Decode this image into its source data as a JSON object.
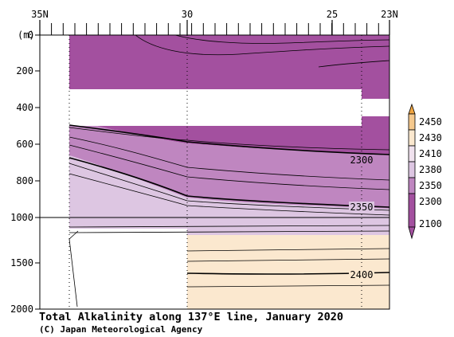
{
  "chart_data": {
    "type": "heatmap",
    "title": "Total Alkalinity along 137°E line, January 2020",
    "credit": "(C) Japan Meteorological Agency",
    "ylabel": "(m)",
    "x_axis": {
      "direction": "north-to-south",
      "ticks": [
        "35N",
        "30",
        "25",
        "23N"
      ],
      "tick_values": [
        35,
        30,
        25,
        23
      ],
      "xlim": [
        35,
        23
      ]
    },
    "y_axis": {
      "ticks": [
        "0",
        "200",
        "400",
        "600",
        "800",
        "1000",
        "1500",
        "2000"
      ],
      "tick_values": [
        0,
        200,
        400,
        600,
        800,
        1000,
        1500,
        2000
      ],
      "ylim": [
        0,
        2000
      ],
      "scale_break_at": 1000,
      "scale_note": "linear 0-1000 m, compressed 1000-2000 m"
    },
    "color_scale": {
      "levels": [
        2100,
        2300,
        2350,
        2380,
        2410,
        2430,
        2450
      ],
      "level_labels": [
        "2100",
        "2300",
        "2350",
        "2380",
        "2410",
        "2430",
        "2450"
      ],
      "colors": [
        "#a3509f",
        "#bf86c0",
        "#ddc6e2",
        "#f0e2ee",
        "#fbe8cf",
        "#f5c98e",
        "#f0a540"
      ]
    },
    "labeled_contours": [
      {
        "label": "2300",
        "value": 2300,
        "depth_at_23N": 600
      },
      {
        "label": "2350",
        "value": 2350,
        "depth_at_23N": 950
      },
      {
        "label": "2400",
        "value": 2400,
        "depth_at_23N": 1600
      }
    ],
    "legend_placement": "right"
  }
}
